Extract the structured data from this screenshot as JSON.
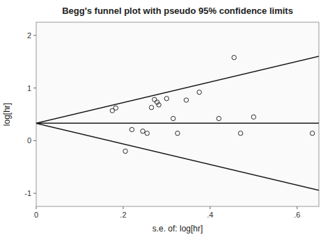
{
  "chart_data": {
    "type": "scatter",
    "title": "Begg's funnel plot with pseudo 95% confidence limits",
    "xlabel": "s.e. of: log[hr]",
    "ylabel": "log[hr]",
    "xlim": [
      0,
      0.65
    ],
    "ylim": [
      -1.25,
      2.25
    ],
    "xticks": [
      0,
      {
        "value": 0.2,
        "label": ".2"
      },
      {
        "value": 0.4,
        "label": ".4"
      },
      {
        "value": 0.6,
        "label": ".6"
      }
    ],
    "yticks": [
      -1,
      0,
      1,
      2
    ],
    "series": [
      {
        "type": "line",
        "color": "#1a1a1a",
        "x": [
          0,
          0.65
        ],
        "values": [
          0.33,
          1.604
        ]
      },
      {
        "type": "line",
        "color": "#1a1a1a",
        "x": [
          0,
          0.65
        ],
        "values": [
          0.33,
          -0.944
        ]
      },
      {
        "type": "line",
        "color": "#1a1a1a",
        "x": [
          0,
          0.65
        ],
        "values": [
          0.33,
          0.33
        ]
      },
      {
        "type": "scatter",
        "color": "#2a2a2a",
        "marker": "circle",
        "x": [
          0.175,
          0.183,
          0.205,
          0.22,
          0.245,
          0.255,
          0.265,
          0.272,
          0.278,
          0.282,
          0.3,
          0.315,
          0.325,
          0.345,
          0.375,
          0.42,
          0.455,
          0.47,
          0.5,
          0.635
        ],
        "values": [
          0.57,
          0.62,
          -0.2,
          0.21,
          0.18,
          0.14,
          0.63,
          0.78,
          0.73,
          0.68,
          0.8,
          0.42,
          0.14,
          0.77,
          0.92,
          0.42,
          1.58,
          0.14,
          0.45,
          0.14
        ]
      }
    ]
  }
}
